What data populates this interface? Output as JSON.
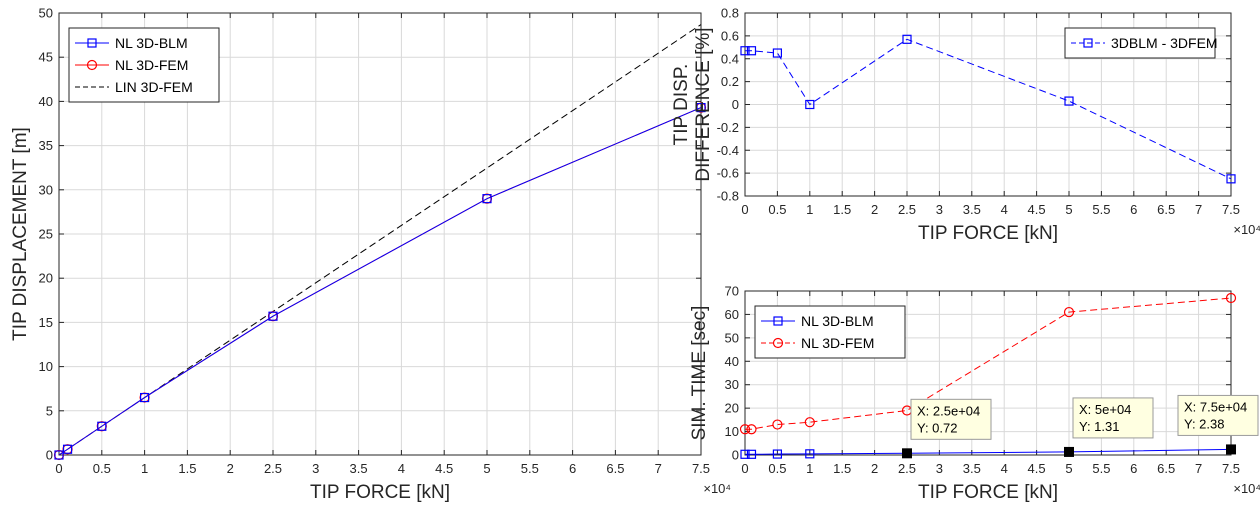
{
  "chart_data": [
    {
      "type": "line",
      "xlabel": "TIP  FORCE  [kN]",
      "ylabel": "TIP  DISPLACEMENT  [m]",
      "x_multiplier_label": "×10⁴",
      "xlim": [
        0,
        7.5
      ],
      "ylim": [
        0,
        50
      ],
      "xticks": [
        "0",
        "0.5",
        "1",
        "1.5",
        "2",
        "2.5",
        "3",
        "3.5",
        "4",
        "4.5",
        "5",
        "5.5",
        "6",
        "6.5",
        "7",
        "7.5"
      ],
      "yticks": [
        "0",
        "5",
        "10",
        "15",
        "20",
        "25",
        "30",
        "35",
        "40",
        "45",
        "50"
      ],
      "grid": true,
      "legend_position": "top-left",
      "series": [
        {
          "name": "NL 3D-BLM",
          "color": "#0000ff",
          "marker": "square",
          "dash": "solid",
          "x": [
            0,
            0.1,
            0.5,
            1,
            2.5,
            5,
            7.5
          ],
          "y": [
            0,
            0.65,
            3.25,
            6.5,
            15.7,
            29.0,
            39.3
          ]
        },
        {
          "name": "NL 3D-FEM",
          "color": "#ff0000",
          "marker": "circle",
          "dash": "solid",
          "x": [
            0,
            0.1,
            0.5,
            1,
            2.5,
            5,
            7.5
          ],
          "y": [
            0,
            0.65,
            3.25,
            6.5,
            15.7,
            29.0,
            39.3
          ]
        },
        {
          "name": "LIN 3D-FEM",
          "color": "#000000",
          "marker": "none",
          "dash": "dashed",
          "x": [
            0,
            7.5
          ],
          "y": [
            0,
            48.7
          ]
        }
      ]
    },
    {
      "type": "line",
      "xlabel": "TIP  FORCE  [kN]",
      "ylabel_lines": [
        "TIP DISP.",
        "DIFFERENCE [%]"
      ],
      "x_multiplier_label": "×10⁴",
      "xlim": [
        0,
        7.5
      ],
      "ylim": [
        -0.8,
        0.8
      ],
      "xticks": [
        "0",
        "0.5",
        "1",
        "1.5",
        "2",
        "2.5",
        "3",
        "3.5",
        "4",
        "4.5",
        "5",
        "5.5",
        "6",
        "6.5",
        "7",
        "7.5"
      ],
      "yticks": [
        "-0.8",
        "-0.6",
        "-0.4",
        "-0.2",
        "0",
        "0.2",
        "0.4",
        "0.6",
        "0.8"
      ],
      "grid": true,
      "legend_position": "top-right",
      "series": [
        {
          "name": "3DBLM - 3DFEM",
          "color": "#0000ff",
          "marker": "square",
          "dash": "dashed",
          "x": [
            0,
            0.1,
            0.5,
            1,
            2.5,
            5,
            7.5
          ],
          "y": [
            0.47,
            0.47,
            0.45,
            0.0,
            0.57,
            0.03,
            -0.65
          ]
        }
      ]
    },
    {
      "type": "line",
      "xlabel": "TIP  FORCE  [kN]",
      "ylabel": "SIM. TIME [sec]",
      "x_multiplier_label": "×10⁴",
      "xlim": [
        0,
        7.5
      ],
      "ylim": [
        0,
        70
      ],
      "xticks": [
        "0",
        "0.5",
        "1",
        "1.5",
        "2",
        "2.5",
        "3",
        "3.5",
        "4",
        "4.5",
        "5",
        "5.5",
        "6",
        "6.5",
        "7",
        "7.5"
      ],
      "yticks": [
        "0",
        "10",
        "20",
        "30",
        "40",
        "50",
        "60",
        "70"
      ],
      "grid": true,
      "legend_position": "top-left",
      "series": [
        {
          "name": "NL 3D-BLM",
          "color": "#0000ff",
          "marker": "square",
          "dash": "solid",
          "x": [
            0,
            0.1,
            0.5,
            1,
            2.5,
            5,
            7.5
          ],
          "y": [
            0.3,
            0.3,
            0.4,
            0.5,
            0.72,
            1.31,
            2.38
          ]
        },
        {
          "name": "NL 3D-FEM",
          "color": "#ff0000",
          "marker": "circle",
          "dash": "dashed",
          "x": [
            0,
            0.1,
            0.5,
            1,
            2.5,
            5,
            7.5
          ],
          "y": [
            11,
            11,
            13,
            14,
            19,
            61,
            67
          ]
        }
      ],
      "datatips": [
        {
          "x": 2.5,
          "y": 0.72,
          "line1": "X: 2.5e+04",
          "line2": "Y: 0.72"
        },
        {
          "x": 5,
          "y": 1.31,
          "line1": "X: 5e+04",
          "line2": "Y: 1.31"
        },
        {
          "x": 7.5,
          "y": 2.38,
          "line1": "X: 7.5e+04",
          "line2": "Y: 2.38"
        }
      ]
    }
  ]
}
